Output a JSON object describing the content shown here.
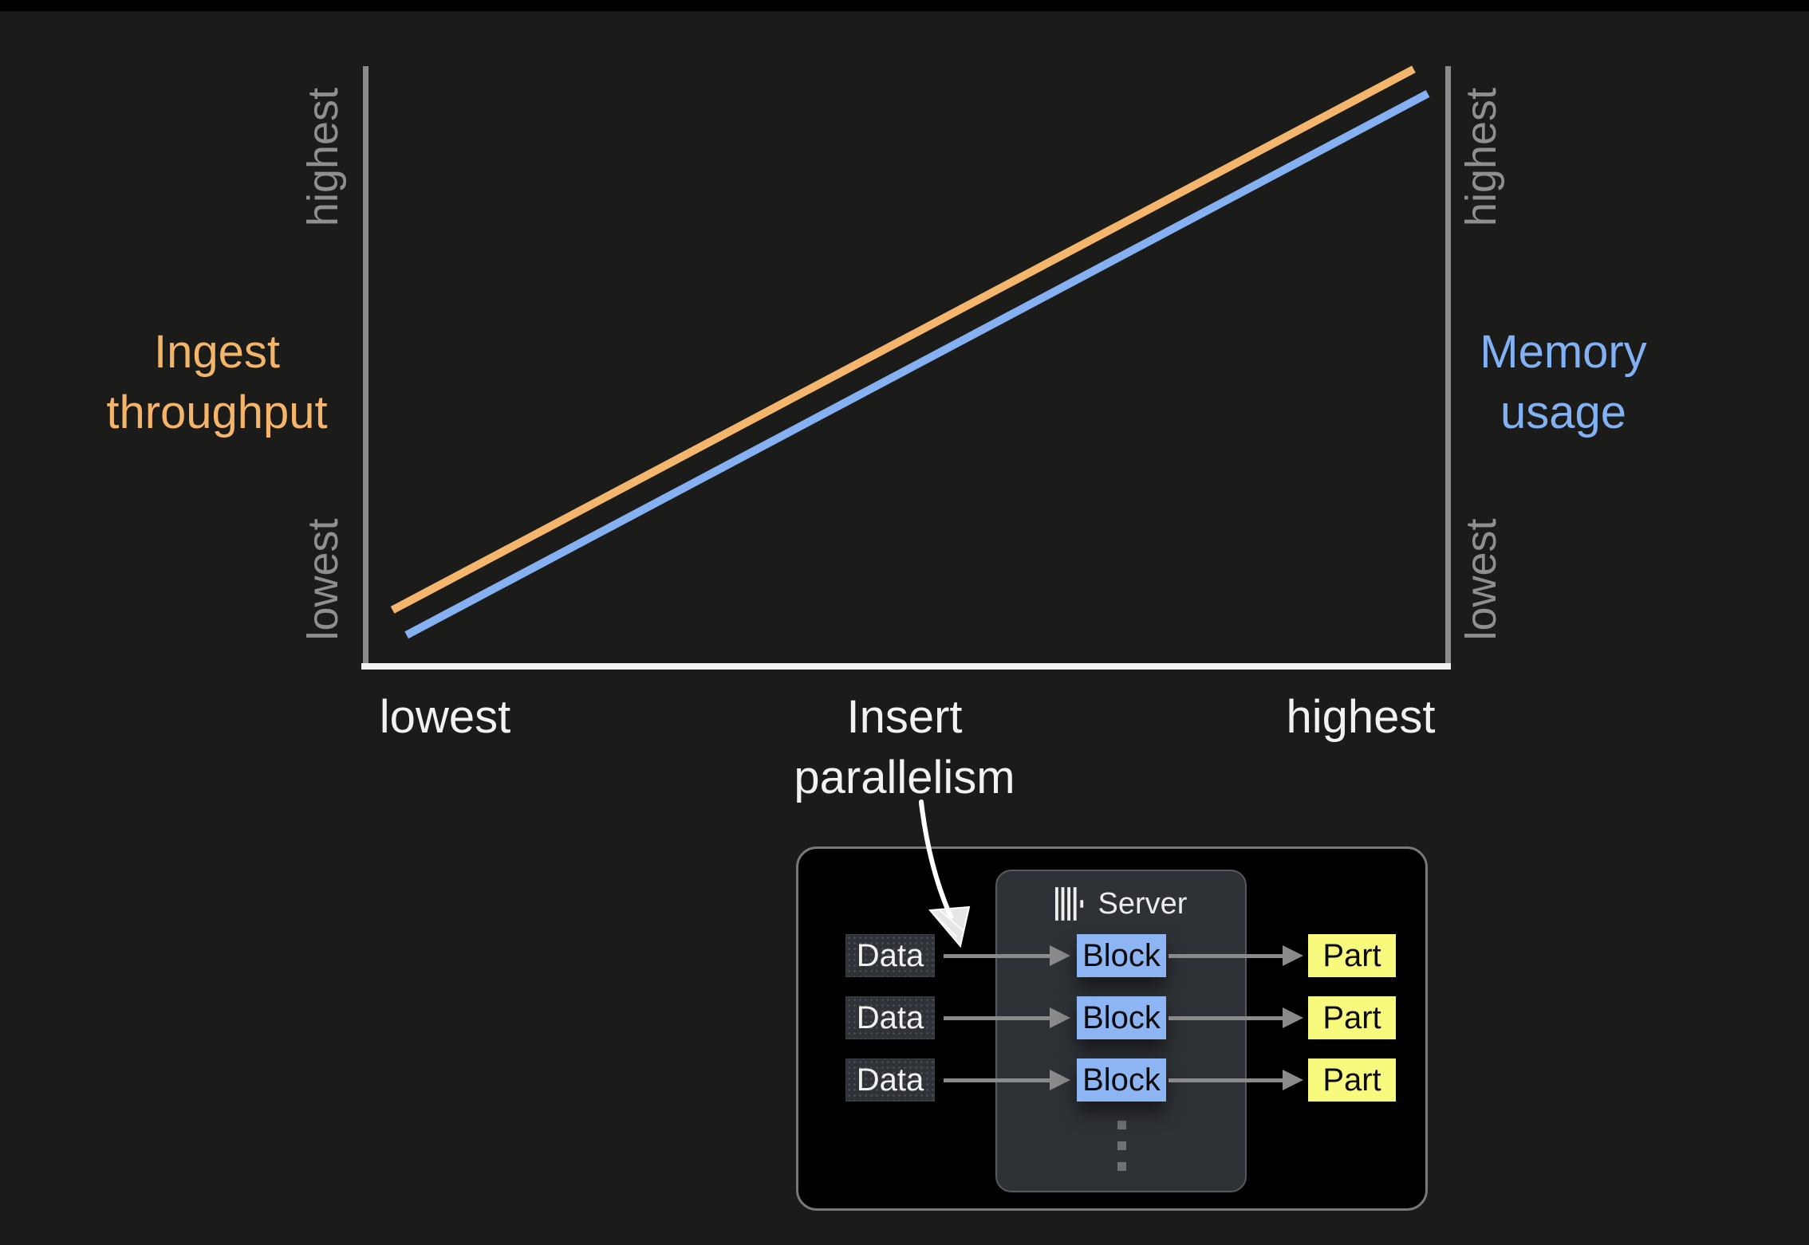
{
  "page": {
    "background": "#1b1b19",
    "top_strip_color": "#000000"
  },
  "chart": {
    "left_axis": {
      "title": [
        "Ingest",
        "throughput"
      ],
      "color": "#f4b469",
      "top_tick": "highest",
      "bottom_tick": "lowest"
    },
    "right_axis": {
      "title": [
        "Memory",
        "usage"
      ],
      "color": "#82b1f4",
      "top_tick": "highest",
      "bottom_tick": "lowest"
    },
    "x_axis": {
      "left_tick": "lowest",
      "title": [
        "Insert",
        "parallelism"
      ],
      "right_tick": "highest"
    },
    "axis_line_color": "#8c8c8c",
    "x_axis_line_color": "#f2f2f2",
    "tick_color": "#8f8f8f"
  },
  "chart_data": {
    "type": "line",
    "xlabel": "Insert parallelism",
    "x_range_labels": [
      "lowest",
      "highest"
    ],
    "left_y_axis": {
      "label": "Ingest throughput",
      "range_labels": [
        "lowest",
        "highest"
      ]
    },
    "right_y_axis": {
      "label": "Memory usage",
      "range_labels": [
        "lowest",
        "highest"
      ]
    },
    "grid": false,
    "legend": false,
    "series": [
      {
        "name": "Ingest throughput",
        "axis": "left",
        "color": "#f4b56c",
        "points_norm": [
          [
            0.023,
            0.089
          ],
          [
            0.97,
            0.995
          ]
        ]
      },
      {
        "name": "Memory usage",
        "axis": "right",
        "color": "#85b0f2",
        "points_norm": [
          [
            0.036,
            0.047
          ],
          [
            0.983,
            0.954
          ]
        ]
      }
    ]
  },
  "annotation_arrow": {
    "color": "#ffffff",
    "points_from": "Insert parallelism",
    "points_to": "Data to Block flow"
  },
  "diagram": {
    "server_label": "Server",
    "data_labels": [
      "Data",
      "Data",
      "Data"
    ],
    "block_labels": [
      "Block",
      "Block",
      "Block"
    ],
    "part_labels": [
      "Part",
      "Part",
      "Part"
    ],
    "colors": {
      "outer_bg": "#000000",
      "outer_border": "#77787a",
      "server_bg": "#2e3136",
      "server_border": "#56595e",
      "server_text": "#ececec",
      "data_bg": "#2f3236",
      "data_text": "#f2f2f2",
      "block_bg": "#8db5f4",
      "block_text": "#0b0b0b",
      "part_bg": "#f8fa7d",
      "part_text": "#0b0b0b",
      "arrow": "#8a8a8a",
      "dots": "#6e7176"
    }
  }
}
